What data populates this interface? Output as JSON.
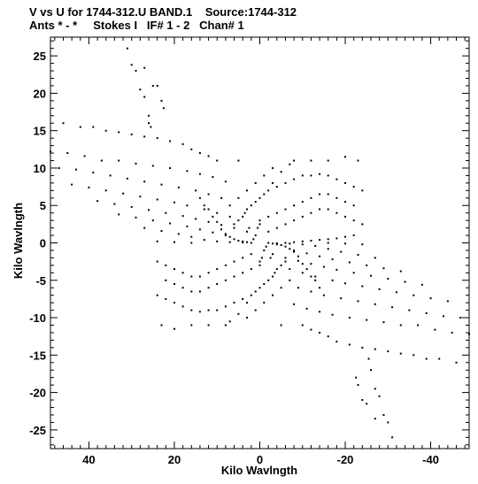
{
  "chart_data": {
    "type": "scatter",
    "title_line1": "V vs U for 1744-312.U BAND.1    Source:1744-312",
    "title_line2": "Ants * - *     Stokes I   IF# 1 - 2   Chan# 1",
    "xlabel": "Kilo Wavlngth",
    "ylabel": "Kilo Wavlngth",
    "xlim": [
      49,
      -49
    ],
    "ylim": [
      -27.5,
      27.5
    ],
    "x_reversed": true,
    "grid": false,
    "x_ticks": [
      40,
      20,
      0,
      -20,
      -40
    ],
    "x_tick_labels": [
      "40",
      "20",
      "0",
      "-20",
      "-40"
    ],
    "y_ticks": [
      25,
      20,
      15,
      10,
      5,
      0,
      -5,
      -10,
      -15,
      -20,
      -25
    ],
    "y_tick_labels": [
      "25",
      "20",
      "15",
      "10",
      "5",
      "0",
      "-5",
      "-10",
      "-15",
      "-20",
      "-25"
    ],
    "points": [
      [
        31.0,
        26.0
      ],
      [
        30.0,
        23.8
      ],
      [
        27.0,
        23.4
      ],
      [
        29.0,
        23.0
      ],
      [
        25.0,
        21.0
      ],
      [
        24.0,
        21.0
      ],
      [
        28.0,
        20.5
      ],
      [
        27.0,
        19.5
      ],
      [
        23.0,
        19.0
      ],
      [
        22.5,
        18.0
      ],
      [
        26.0,
        17.0
      ],
      [
        25.5,
        15.5
      ],
      [
        26.0,
        16.0
      ],
      [
        46.0,
        16.0
      ],
      [
        42.0,
        15.5
      ],
      [
        39.0,
        15.5
      ],
      [
        36.0,
        15.0
      ],
      [
        33.0,
        14.8
      ],
      [
        30.0,
        14.5
      ],
      [
        27.0,
        14.2
      ],
      [
        24.0,
        14.0
      ],
      [
        21.0,
        13.6
      ],
      [
        18.0,
        13.2
      ],
      [
        16.0,
        12.5
      ],
      [
        14.0,
        12.0
      ],
      [
        12.0,
        11.6
      ],
      [
        10.0,
        11.0
      ],
      [
        5.0,
        11.0
      ],
      [
        -8.0,
        11.0
      ],
      [
        -12.0,
        11.0
      ],
      [
        -16.0,
        11.0
      ],
      [
        -20.0,
        11.5
      ],
      [
        -23.0,
        11.0
      ],
      [
        49.0,
        12.2
      ],
      [
        45.0,
        12.0
      ],
      [
        41.0,
        11.6
      ],
      [
        37.0,
        11.0
      ],
      [
        33.0,
        11.0
      ],
      [
        29.0,
        10.6
      ],
      [
        25.0,
        10.3
      ],
      [
        21.0,
        10.0
      ],
      [
        17.0,
        9.6
      ],
      [
        14.0,
        9.2
      ],
      [
        11.0,
        8.8
      ],
      [
        8.0,
        8.2
      ],
      [
        47.0,
        10.0
      ],
      [
        43.0,
        9.8
      ],
      [
        39.0,
        9.4
      ],
      [
        35.0,
        9.0
      ],
      [
        31.0,
        8.6
      ],
      [
        27.0,
        8.2
      ],
      [
        23.0,
        7.8
      ],
      [
        19.0,
        7.4
      ],
      [
        15.0,
        7.0
      ],
      [
        12.0,
        6.5
      ],
      [
        9.0,
        6.0
      ],
      [
        44.0,
        7.8
      ],
      [
        40.0,
        7.4
      ],
      [
        36.0,
        7.0
      ],
      [
        32.0,
        6.6
      ],
      [
        28.0,
        6.2
      ],
      [
        24.0,
        5.8
      ],
      [
        20.0,
        5.4
      ],
      [
        17.0,
        5.0
      ],
      [
        13.0,
        4.5
      ],
      [
        10.0,
        4.0
      ],
      [
        7.0,
        3.5
      ],
      [
        38.0,
        5.6
      ],
      [
        34.0,
        5.2
      ],
      [
        30.0,
        4.8
      ],
      [
        26.0,
        4.4
      ],
      [
        22.0,
        4.0
      ],
      [
        18.0,
        3.6
      ],
      [
        15.0,
        3.2
      ],
      [
        12.0,
        2.8
      ],
      [
        9.0,
        2.4
      ],
      [
        6.0,
        2.0
      ],
      [
        33.0,
        3.8
      ],
      [
        29.0,
        3.4
      ],
      [
        25.0,
        3.0
      ],
      [
        21.0,
        2.6
      ],
      [
        17.0,
        2.2
      ],
      [
        14.0,
        1.8
      ],
      [
        11.0,
        1.4
      ],
      [
        8.0,
        1.0
      ],
      [
        27.0,
        2.0
      ],
      [
        23.0,
        1.6
      ],
      [
        19.0,
        1.2
      ],
      [
        16.0,
        0.8
      ],
      [
        13.0,
        0.4
      ],
      [
        10.0,
        0.2
      ],
      [
        7.0,
        0.1
      ],
      [
        4.0,
        0.05
      ],
      [
        2.0,
        0.0
      ],
      [
        -2.0,
        0.0
      ],
      [
        -4.0,
        -0.05
      ],
      [
        -6.0,
        0.0
      ],
      [
        -8.0,
        0.1
      ],
      [
        -10.0,
        0.2
      ],
      [
        -12.0,
        0.3
      ],
      [
        -14.0,
        0.4
      ],
      [
        -16.0,
        0.5
      ],
      [
        -18.0,
        0.6
      ],
      [
        -20.0,
        0.8
      ],
      [
        -22.0,
        1.0
      ],
      [
        24.0,
        0.2
      ],
      [
        20.0,
        0.1
      ],
      [
        16.0,
        0.0
      ],
      [
        7.0,
        5.0
      ],
      [
        5.0,
        6.0
      ],
      [
        3.0,
        7.0
      ],
      [
        1.0,
        8.0
      ],
      [
        -1.0,
        9.0
      ],
      [
        -3.0,
        10.0
      ],
      [
        6.0,
        2.5
      ],
      [
        5.0,
        3.0
      ],
      [
        4.0,
        3.5
      ],
      [
        3.5,
        4.0
      ],
      [
        3.0,
        4.5
      ],
      [
        2.0,
        5.0
      ],
      [
        1.0,
        5.5
      ],
      [
        0.0,
        6.0
      ],
      [
        -1.0,
        6.5
      ],
      [
        -2.0,
        7.0
      ],
      [
        -4.0,
        7.5
      ],
      [
        -6.0,
        8.0
      ],
      [
        -8.0,
        8.5
      ],
      [
        -10.0,
        9.0
      ],
      [
        -12.0,
        9.0
      ],
      [
        -14.0,
        9.2
      ],
      [
        -16.0,
        9.0
      ],
      [
        -18.0,
        8.5
      ],
      [
        -20.0,
        8.0
      ],
      [
        -22.0,
        7.5
      ],
      [
        -24.0,
        7.0
      ],
      [
        0.0,
        3.0
      ],
      [
        -2.0,
        3.5
      ],
      [
        -4.0,
        4.0
      ],
      [
        -6.0,
        4.5
      ],
      [
        -8.0,
        5.0
      ],
      [
        -10.0,
        5.5
      ],
      [
        -12.0,
        6.0
      ],
      [
        -14.0,
        6.5
      ],
      [
        -16.0,
        6.5
      ],
      [
        -18.0,
        6.0
      ],
      [
        -20.0,
        5.5
      ],
      [
        -22.0,
        5.0
      ],
      [
        -2.0,
        1.5
      ],
      [
        -4.0,
        2.0
      ],
      [
        -6.0,
        2.5
      ],
      [
        -8.0,
        3.0
      ],
      [
        -10.0,
        3.5
      ],
      [
        -12.0,
        4.0
      ],
      [
        -14.0,
        4.5
      ],
      [
        -16.0,
        4.5
      ],
      [
        -18.0,
        4.0
      ],
      [
        -20.0,
        3.5
      ],
      [
        -22.0,
        3.0
      ],
      [
        -24.0,
        2.5
      ],
      [
        -3.0,
        8.0
      ],
      [
        -5.0,
        9.5
      ],
      [
        -7.0,
        10.5
      ],
      [
        14.0,
        6.0
      ],
      [
        13.0,
        5.0
      ],
      [
        12.0,
        4.5
      ],
      [
        11.0,
        3.5
      ],
      [
        10.0,
        2.8
      ],
      [
        9.0,
        1.8
      ],
      [
        8.0,
        1.2
      ],
      [
        7.0,
        0.8
      ],
      [
        6.0,
        0.5
      ],
      [
        5.0,
        0.3
      ],
      [
        4.0,
        0.2
      ],
      [
        3.0,
        0.1
      ],
      [
        -31.0,
        -26.0
      ],
      [
        -30.0,
        -24.0
      ],
      [
        -27.0,
        -23.5
      ],
      [
        -29.0,
        -23.0
      ],
      [
        -25.0,
        -21.5
      ],
      [
        -24.0,
        -21.0
      ],
      [
        -28.0,
        -20.5
      ],
      [
        -27.0,
        -19.5
      ],
      [
        -23.0,
        -19.0
      ],
      [
        -22.5,
        -18.0
      ],
      [
        -26.0,
        -17.0
      ],
      [
        -25.5,
        -15.5
      ],
      [
        -46.0,
        -16.0
      ],
      [
        -42.0,
        -15.5
      ],
      [
        -39.0,
        -15.5
      ],
      [
        -36.0,
        -15.0
      ],
      [
        -33.0,
        -14.8
      ],
      [
        -30.0,
        -14.5
      ],
      [
        -27.0,
        -14.2
      ],
      [
        -24.0,
        -14.0
      ],
      [
        -21.0,
        -13.6
      ],
      [
        -18.0,
        -13.2
      ],
      [
        -16.0,
        -12.5
      ],
      [
        -14.0,
        -12.0
      ],
      [
        -12.0,
        -11.6
      ],
      [
        -10.0,
        -11.0
      ],
      [
        -5.0,
        -11.0
      ],
      [
        8.0,
        -11.0
      ],
      [
        12.0,
        -11.0
      ],
      [
        16.0,
        -11.0
      ],
      [
        20.0,
        -11.5
      ],
      [
        23.0,
        -11.0
      ],
      [
        -49.0,
        -12.2
      ],
      [
        -45.0,
        -12.0
      ],
      [
        -41.0,
        -11.6
      ],
      [
        -37.0,
        -11.0
      ],
      [
        -33.0,
        -11.0
      ],
      [
        -29.0,
        -10.6
      ],
      [
        -25.0,
        -10.3
      ],
      [
        -21.0,
        -10.0
      ],
      [
        -17.0,
        -9.6
      ],
      [
        -14.0,
        -9.2
      ],
      [
        -11.0,
        -8.8
      ],
      [
        -8.0,
        -8.2
      ],
      [
        -47.0,
        -10.0
      ],
      [
        -43.0,
        -9.8
      ],
      [
        -39.0,
        -9.4
      ],
      [
        -35.0,
        -9.0
      ],
      [
        -31.0,
        -8.6
      ],
      [
        -27.0,
        -8.2
      ],
      [
        -23.0,
        -7.8
      ],
      [
        -19.0,
        -7.4
      ],
      [
        -15.0,
        -7.0
      ],
      [
        -12.0,
        -6.5
      ],
      [
        -9.0,
        -6.0
      ],
      [
        -44.0,
        -7.8
      ],
      [
        -40.0,
        -7.4
      ],
      [
        -36.0,
        -7.0
      ],
      [
        -32.0,
        -6.6
      ],
      [
        -28.0,
        -6.2
      ],
      [
        -24.0,
        -5.8
      ],
      [
        -20.0,
        -5.4
      ],
      [
        -17.0,
        -5.0
      ],
      [
        -13.0,
        -4.5
      ],
      [
        -10.0,
        -4.0
      ],
      [
        -7.0,
        -3.5
      ],
      [
        -38.0,
        -5.6
      ],
      [
        -34.0,
        -5.2
      ],
      [
        -30.0,
        -4.8
      ],
      [
        -26.0,
        -4.4
      ],
      [
        -22.0,
        -4.0
      ],
      [
        -18.0,
        -3.6
      ],
      [
        -15.0,
        -3.2
      ],
      [
        -12.0,
        -2.8
      ],
      [
        -9.0,
        -2.4
      ],
      [
        -6.0,
        -2.0
      ],
      [
        -33.0,
        -3.8
      ],
      [
        -29.0,
        -3.4
      ],
      [
        -25.0,
        -3.0
      ],
      [
        -21.0,
        -2.6
      ],
      [
        -17.0,
        -2.2
      ],
      [
        -14.0,
        -1.8
      ],
      [
        -11.0,
        -1.4
      ],
      [
        -8.0,
        -1.0
      ],
      [
        -27.0,
        -2.0
      ],
      [
        -23.0,
        -1.6
      ],
      [
        -19.0,
        -1.2
      ],
      [
        -16.0,
        -0.8
      ],
      [
        -13.0,
        -0.4
      ],
      [
        -10.0,
        -0.2
      ],
      [
        -7.0,
        -0.1
      ],
      [
        -24.0,
        -0.2
      ],
      [
        -20.0,
        -0.1
      ],
      [
        -16.0,
        0.0
      ],
      [
        -7.0,
        -5.0
      ],
      [
        -5.0,
        -6.0
      ],
      [
        -3.0,
        -7.0
      ],
      [
        -1.0,
        -8.0
      ],
      [
        1.0,
        -9.0
      ],
      [
        3.0,
        -10.0
      ],
      [
        -6.0,
        -2.5
      ],
      [
        -5.0,
        -3.0
      ],
      [
        -4.0,
        -3.5
      ],
      [
        -3.5,
        -4.0
      ],
      [
        -3.0,
        -4.5
      ],
      [
        -2.0,
        -5.0
      ],
      [
        -1.0,
        -5.5
      ],
      [
        0.0,
        -6.0
      ],
      [
        1.0,
        -6.5
      ],
      [
        2.0,
        -7.0
      ],
      [
        4.0,
        -7.5
      ],
      [
        6.0,
        -8.0
      ],
      [
        8.0,
        -8.5
      ],
      [
        10.0,
        -9.0
      ],
      [
        12.0,
        -9.0
      ],
      [
        14.0,
        -9.2
      ],
      [
        16.0,
        -9.0
      ],
      [
        18.0,
        -8.5
      ],
      [
        20.0,
        -8.0
      ],
      [
        22.0,
        -7.5
      ],
      [
        24.0,
        -7.0
      ],
      [
        0.0,
        -3.0
      ],
      [
        2.0,
        -3.5
      ],
      [
        4.0,
        -4.0
      ],
      [
        6.0,
        -4.5
      ],
      [
        8.0,
        -5.0
      ],
      [
        10.0,
        -5.5
      ],
      [
        12.0,
        -6.0
      ],
      [
        14.0,
        -6.5
      ],
      [
        16.0,
        -6.5
      ],
      [
        18.0,
        -6.0
      ],
      [
        20.0,
        -5.5
      ],
      [
        22.0,
        -5.0
      ],
      [
        2.0,
        -1.5
      ],
      [
        4.0,
        -2.0
      ],
      [
        6.0,
        -2.5
      ],
      [
        8.0,
        -3.0
      ],
      [
        10.0,
        -3.5
      ],
      [
        12.0,
        -4.0
      ],
      [
        14.0,
        -4.5
      ],
      [
        16.0,
        -4.5
      ],
      [
        18.0,
        -4.0
      ],
      [
        20.0,
        -3.5
      ],
      [
        22.0,
        -3.0
      ],
      [
        24.0,
        -2.5
      ],
      [
        3.0,
        -8.0
      ],
      [
        5.0,
        -9.5
      ],
      [
        7.0,
        -10.5
      ],
      [
        -14.0,
        -6.0
      ],
      [
        -13.0,
        -5.0
      ],
      [
        -12.0,
        -4.5
      ],
      [
        -11.0,
        -3.5
      ],
      [
        -10.0,
        -2.8
      ],
      [
        -9.0,
        -1.8
      ],
      [
        -8.0,
        -1.2
      ],
      [
        -7.0,
        -0.8
      ],
      [
        -6.0,
        -0.5
      ],
      [
        -5.0,
        -0.3
      ],
      [
        -4.0,
        -0.2
      ],
      [
        -3.0,
        -0.1
      ],
      [
        1.5,
        0.5
      ],
      [
        1.0,
        1.0
      ],
      [
        0.5,
        2.0
      ],
      [
        0.0,
        2.5
      ],
      [
        -1.5,
        -0.5
      ],
      [
        -1.0,
        -1.0
      ],
      [
        -0.5,
        -2.0
      ],
      [
        0.0,
        -2.5
      ],
      [
        3.0,
        1.5
      ],
      [
        2.5,
        2.0
      ],
      [
        -3.0,
        -1.5
      ],
      [
        -2.5,
        -2.0
      ]
    ]
  }
}
